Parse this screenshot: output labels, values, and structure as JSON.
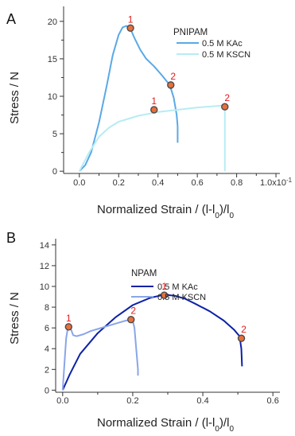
{
  "chart_data": [
    {
      "type": "line",
      "panel_label": "A",
      "legend_title": "PNIPAM",
      "xlabel": "Normalized Strain / (l-l0)/l0",
      "ylabel": "Stress / N",
      "xlim": [
        -0.08,
        1.02
      ],
      "ylim": [
        -0.3,
        22
      ],
      "x_ticks": [
        "0.0",
        "0.2",
        "0.4",
        "0.6",
        "0.8",
        "1.0x10-1"
      ],
      "x_tick_values": [
        0.0,
        0.2,
        0.4,
        0.6,
        0.8,
        1.0
      ],
      "y_ticks": [
        "0",
        "5",
        "10",
        "15",
        "20"
      ],
      "y_tick_values": [
        0,
        5,
        10,
        15,
        20
      ],
      "legend_position": "top-right",
      "series": [
        {
          "name": "0.5 M KAc",
          "color": "#5aa9e6",
          "x": [
            0.0,
            0.03,
            0.06,
            0.1,
            0.14,
            0.17,
            0.2,
            0.22,
            0.24,
            0.26,
            0.28,
            0.31,
            0.34,
            0.38,
            0.42,
            0.46,
            0.48,
            0.495,
            0.5,
            0.5
          ],
          "y": [
            0,
            0.8,
            2.5,
            6.5,
            11.5,
            15.5,
            18.2,
            19.2,
            19.4,
            19.0,
            17.8,
            16.2,
            15.0,
            14.0,
            12.8,
            11.5,
            9.8,
            7.5,
            6.0,
            3.8
          ]
        },
        {
          "name": "0.5 M KSCN",
          "color": "#b7ecf3",
          "x": [
            0.0,
            0.05,
            0.1,
            0.15,
            0.2,
            0.3,
            0.4,
            0.5,
            0.6,
            0.7,
            0.74,
            0.74,
            0.74
          ],
          "y": [
            0,
            2.5,
            4.6,
            5.8,
            6.6,
            7.4,
            7.9,
            8.2,
            8.5,
            8.7,
            8.8,
            4.0,
            0
          ]
        }
      ],
      "annotations": [
        {
          "label": "1",
          "x": 0.26,
          "y": 19.1
        },
        {
          "label": "2",
          "x": 0.465,
          "y": 11.5
        },
        {
          "label": "1",
          "x": 0.38,
          "y": 8.2
        },
        {
          "label": "2",
          "x": 0.74,
          "y": 8.6
        }
      ]
    },
    {
      "type": "line",
      "panel_label": "B",
      "legend_title": "NPAM",
      "xlabel": "Normalized Strain / (l-l0)/l0",
      "ylabel": "Stress / N",
      "xlim": [
        -0.02,
        0.62
      ],
      "ylim": [
        -0.2,
        14.6
      ],
      "x_ticks": [
        "0.0",
        "0.2",
        "0.4",
        "0.6"
      ],
      "x_tick_values": [
        0.0,
        0.2,
        0.4,
        0.6
      ],
      "y_ticks": [
        "0",
        "2",
        "4",
        "6",
        "8",
        "10",
        "12",
        "14"
      ],
      "y_tick_values": [
        0,
        2,
        4,
        6,
        8,
        10,
        12,
        14
      ],
      "legend_position": "top-left",
      "series": [
        {
          "name": "0.5 M KAc",
          "color": "#0d22a6",
          "x": [
            0.0,
            0.02,
            0.05,
            0.1,
            0.15,
            0.2,
            0.25,
            0.29,
            0.32,
            0.35,
            0.38,
            0.42,
            0.46,
            0.49,
            0.505,
            0.51,
            0.512
          ],
          "y": [
            0,
            1.5,
            3.5,
            5.5,
            7.0,
            8.2,
            8.9,
            9.2,
            9.1,
            8.8,
            8.3,
            7.6,
            6.7,
            5.8,
            5.2,
            4.0,
            2.3
          ]
        },
        {
          "name": "0.5 M KSCN",
          "color": "#8aa5e8",
          "x": [
            0.0,
            0.005,
            0.01,
            0.015,
            0.02,
            0.03,
            0.04,
            0.06,
            0.08,
            0.1,
            0.12,
            0.14,
            0.16,
            0.18,
            0.195,
            0.2,
            0.205,
            0.21,
            0.215,
            0.215
          ],
          "y": [
            0,
            2.5,
            5.0,
            6.0,
            6.2,
            5.3,
            5.2,
            5.4,
            5.7,
            5.9,
            6.1,
            6.3,
            6.5,
            6.7,
            6.8,
            6.7,
            6.0,
            4.0,
            2.0,
            1.4
          ]
        }
      ],
      "annotations": [
        {
          "label": "1",
          "x": 0.017,
          "y": 6.1
        },
        {
          "label": "2",
          "x": 0.195,
          "y": 6.8
        },
        {
          "label": "1",
          "x": 0.29,
          "y": 9.15
        },
        {
          "label": "2",
          "x": 0.51,
          "y": 5.0
        }
      ]
    }
  ]
}
